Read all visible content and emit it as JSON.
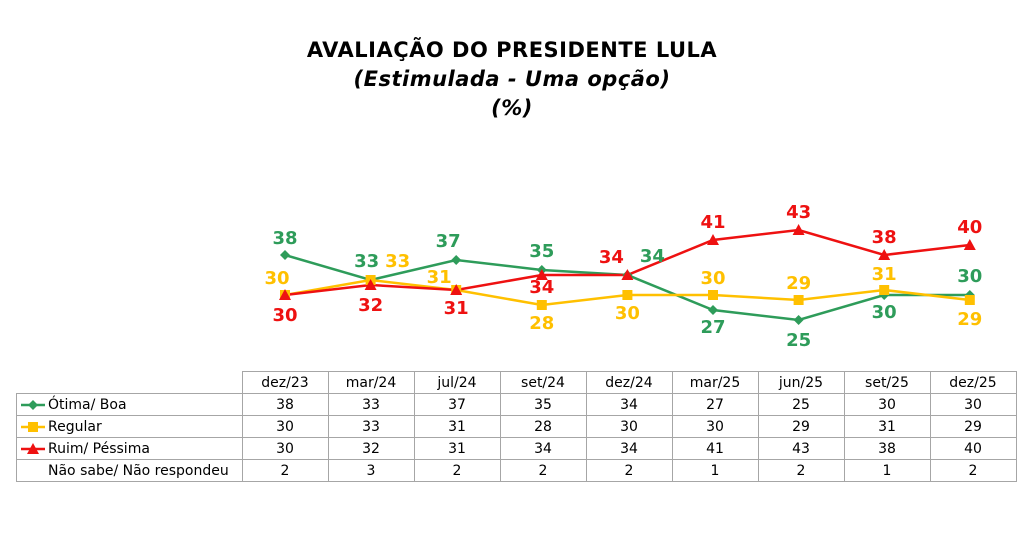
{
  "title": "AVALIAÇÃO DO PRESIDENTE LULA",
  "subtitle": "(Estimulada - Uma opção)",
  "unit": "(%)",
  "colors": {
    "otima_boa": "#2e9c5a",
    "regular": "#ffc000",
    "ruim_pessima": "#ee1111"
  },
  "chart_data": {
    "type": "line",
    "title": "AVALIAÇÃO DO PRESIDENTE LULA",
    "subtitle": "(Estimulada - Uma opção)",
    "unit": "(%)",
    "categories": [
      "dez/23",
      "mar/24",
      "jul/24",
      "set/24",
      "dez/24",
      "mar/25",
      "jun/25",
      "set/25",
      "dez/25"
    ],
    "series": [
      {
        "name": "Ótima/ Boa",
        "color": "#2e9c5a",
        "marker": "diamond",
        "values": [
          38,
          33,
          37,
          35,
          34,
          27,
          25,
          30,
          30
        ]
      },
      {
        "name": "Regular",
        "color": "#ffc000",
        "marker": "square",
        "values": [
          30,
          33,
          31,
          28,
          30,
          30,
          29,
          31,
          29
        ]
      },
      {
        "name": "Ruim/ Péssima",
        "color": "#ee1111",
        "marker": "triangle",
        "values": [
          30,
          32,
          31,
          34,
          34,
          41,
          43,
          38,
          40
        ]
      }
    ],
    "table_extra_rows": [
      {
        "name": "Não sabe/ Não respondeu",
        "values": [
          2,
          3,
          2,
          2,
          2,
          1,
          2,
          1,
          2
        ]
      }
    ],
    "grid": false,
    "legend": "data table below chart"
  }
}
